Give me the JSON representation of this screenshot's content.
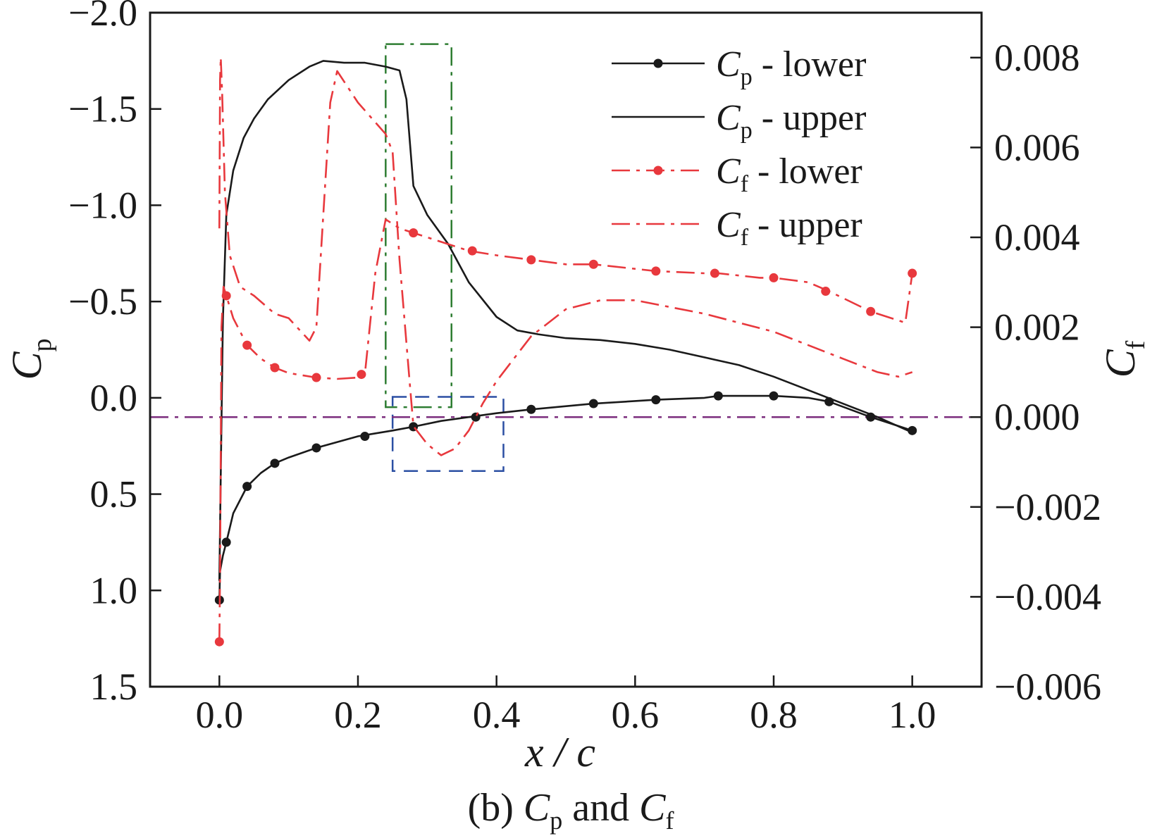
{
  "chart_data": {
    "type": "line",
    "title": "",
    "caption": {
      "prefix": "(b) ",
      "var1": "C",
      "sub1": "p",
      "middle": " and ",
      "var2": "C",
      "sub2": "f"
    },
    "xlabel": "x / c",
    "ylabel_left": {
      "var": "C",
      "sub": "p"
    },
    "ylabel_right": {
      "var": "C",
      "sub": "f"
    },
    "x_axis": {
      "range": [
        -0.1,
        1.1
      ],
      "ticks": [
        0.0,
        0.2,
        0.4,
        0.6,
        0.8,
        1.0
      ],
      "tick_labels": [
        "0.0",
        "0.2",
        "0.4",
        "0.6",
        "0.8",
        "1.0"
      ]
    },
    "y_left": {
      "range": [
        1.5,
        -2.0
      ],
      "inverted": true,
      "ticks": [
        -2.0,
        -1.5,
        -1.0,
        -0.5,
        0.0,
        0.5,
        1.0,
        1.5
      ],
      "tick_labels": [
        "−2.0",
        "−1.5",
        "−1.0",
        "−0.5",
        "0.0",
        "0.5",
        "1.0",
        "1.5"
      ]
    },
    "y_right": {
      "range": [
        -0.006,
        0.009
      ],
      "ticks": [
        -0.006,
        -0.004,
        -0.002,
        0.0,
        0.002,
        0.004,
        0.006,
        0.008
      ],
      "tick_labels": [
        "−0.006",
        "−0.004",
        "−0.002",
        "0.000",
        "0.002",
        "0.004",
        "0.006",
        "0.008"
      ]
    },
    "grid": false,
    "legend": {
      "position": "top-right",
      "entries": [
        {
          "var": "C",
          "sub": "p",
          "text": " - lower"
        },
        {
          "var": "C",
          "sub": "p",
          "text": " - upper"
        },
        {
          "var": "C",
          "sub": "f",
          "text": " - lower"
        },
        {
          "var": "C",
          "sub": "f",
          "text": " - upper"
        }
      ]
    },
    "series": [
      {
        "axis": "left",
        "color": "#1a1a1a",
        "style": "solid",
        "markers": true,
        "x": [
          0.0,
          0.001,
          0.005,
          0.01,
          0.02,
          0.04,
          0.06,
          0.08,
          0.1,
          0.14,
          0.2,
          0.25,
          0.28,
          0.32,
          0.36,
          0.4,
          0.45,
          0.54,
          0.63,
          0.7,
          0.72,
          0.8,
          0.85,
          0.88,
          0.94,
          1.0
        ],
        "y": [
          1.05,
          0.9,
          0.82,
          0.75,
          0.6,
          0.46,
          0.39,
          0.34,
          0.31,
          0.26,
          0.2,
          0.17,
          0.15,
          0.12,
          0.1,
          0.08,
          0.06,
          0.03,
          0.01,
          0.0,
          -0.01,
          -0.01,
          0.0,
          0.02,
          0.1,
          0.17
        ],
        "marker_x": [
          0.0,
          0.01,
          0.04,
          0.08,
          0.14,
          0.21,
          0.28,
          0.37,
          0.45,
          0.54,
          0.63,
          0.72,
          0.8,
          0.88,
          0.94,
          1.0
        ],
        "marker_y": [
          1.05,
          0.75,
          0.46,
          0.34,
          0.26,
          0.2,
          0.15,
          0.1,
          0.06,
          0.03,
          0.01,
          -0.01,
          -0.01,
          0.02,
          0.1,
          0.17
        ]
      },
      {
        "axis": "left",
        "color": "#1a1a1a",
        "style": "solid",
        "markers": false,
        "x": [
          0.0,
          0.002,
          0.005,
          0.01,
          0.02,
          0.035,
          0.05,
          0.07,
          0.1,
          0.13,
          0.15,
          0.18,
          0.21,
          0.24,
          0.26,
          0.27,
          0.28,
          0.3,
          0.33,
          0.36,
          0.4,
          0.43,
          0.46,
          0.5,
          0.55,
          0.6,
          0.65,
          0.7,
          0.75,
          0.8,
          0.85,
          0.9,
          0.95,
          1.0
        ],
        "y": [
          0.95,
          0.4,
          -0.4,
          -0.95,
          -1.18,
          -1.35,
          -1.45,
          -1.55,
          -1.65,
          -1.72,
          -1.75,
          -1.74,
          -1.74,
          -1.72,
          -1.7,
          -1.55,
          -1.1,
          -0.95,
          -0.8,
          -0.6,
          -0.42,
          -0.35,
          -0.33,
          -0.31,
          -0.3,
          -0.28,
          -0.25,
          -0.21,
          -0.17,
          -0.11,
          -0.04,
          0.03,
          0.1,
          0.18
        ]
      },
      {
        "axis": "right",
        "color": "#e8383d",
        "style": "dashdot",
        "markers": true,
        "x": [
          0.0,
          0.001,
          0.003,
          0.006,
          0.01,
          0.02,
          0.04,
          0.06,
          0.08,
          0.1,
          0.14,
          0.17,
          0.2,
          0.21,
          0.225,
          0.24,
          0.26,
          0.28,
          0.32,
          0.36,
          0.4,
          0.45,
          0.5,
          0.54,
          0.6,
          0.63,
          0.7,
          0.72,
          0.78,
          0.8,
          0.85,
          0.88,
          0.94,
          0.99,
          1.0
        ],
        "y": [
          -0.005,
          -0.0035,
          0.002,
          0.0029,
          0.0027,
          0.0022,
          0.0016,
          0.0013,
          0.0011,
          0.00098,
          0.00088,
          0.00085,
          0.00088,
          0.00095,
          0.0032,
          0.0044,
          0.0042,
          0.0041,
          0.0039,
          0.0037,
          0.0036,
          0.0035,
          0.0034,
          0.0034,
          0.0033,
          0.00325,
          0.0032,
          0.0032,
          0.0031,
          0.0031,
          0.003,
          0.0028,
          0.00235,
          0.0021,
          0.0032
        ],
        "marker_x": [
          0.0,
          0.01,
          0.04,
          0.08,
          0.14,
          0.205,
          0.28,
          0.365,
          0.45,
          0.54,
          0.63,
          0.715,
          0.8,
          0.875,
          0.94,
          1.0
        ],
        "marker_y": [
          -0.005,
          0.0027,
          0.0016,
          0.0011,
          0.00088,
          0.00095,
          0.0041,
          0.0037,
          0.0035,
          0.0034,
          0.00325,
          0.0032,
          0.0031,
          0.0028,
          0.00235,
          0.0032
        ]
      },
      {
        "axis": "right",
        "color": "#e8383d",
        "style": "dashdot",
        "markers": false,
        "x": [
          0.0,
          0.001,
          0.002,
          0.004,
          0.008,
          0.015,
          0.03,
          0.05,
          0.08,
          0.1,
          0.13,
          0.14,
          0.15,
          0.16,
          0.17,
          0.2,
          0.24,
          0.25,
          0.26,
          0.275,
          0.28,
          0.3,
          0.32,
          0.34,
          0.36,
          0.38,
          0.4,
          0.45,
          0.5,
          0.55,
          0.6,
          0.7,
          0.8,
          0.9,
          0.95,
          0.98,
          1.0
        ],
        "y": [
          0.0042,
          0.0075,
          0.008,
          0.0072,
          0.005,
          0.0036,
          0.0029,
          0.0027,
          0.0023,
          0.0022,
          0.0017,
          0.002,
          0.0045,
          0.007,
          0.0077,
          0.007,
          0.0063,
          0.0059,
          0.0035,
          0.0007,
          -0.0002,
          -0.0006,
          -0.00085,
          -0.0007,
          -0.0003,
          0.0003,
          0.0008,
          0.0018,
          0.0024,
          0.0026,
          0.0026,
          0.0023,
          0.0019,
          0.0013,
          0.001,
          0.0009,
          0.001
        ]
      }
    ],
    "reference_line": {
      "axis": "right",
      "value": 0.0,
      "color": "#7b2d7d",
      "style": "dashdot"
    },
    "highlight_boxes": [
      {
        "color": "#2e7d32",
        "style": "dashdot",
        "x": [
          0.24,
          0.335
        ],
        "y_right": [
          0.00022,
          0.0083
        ]
      },
      {
        "color": "#2b4fa3",
        "style": "dashed",
        "x": [
          0.25,
          0.41
        ],
        "y_right": [
          -0.0012,
          0.00045
        ]
      }
    ]
  }
}
